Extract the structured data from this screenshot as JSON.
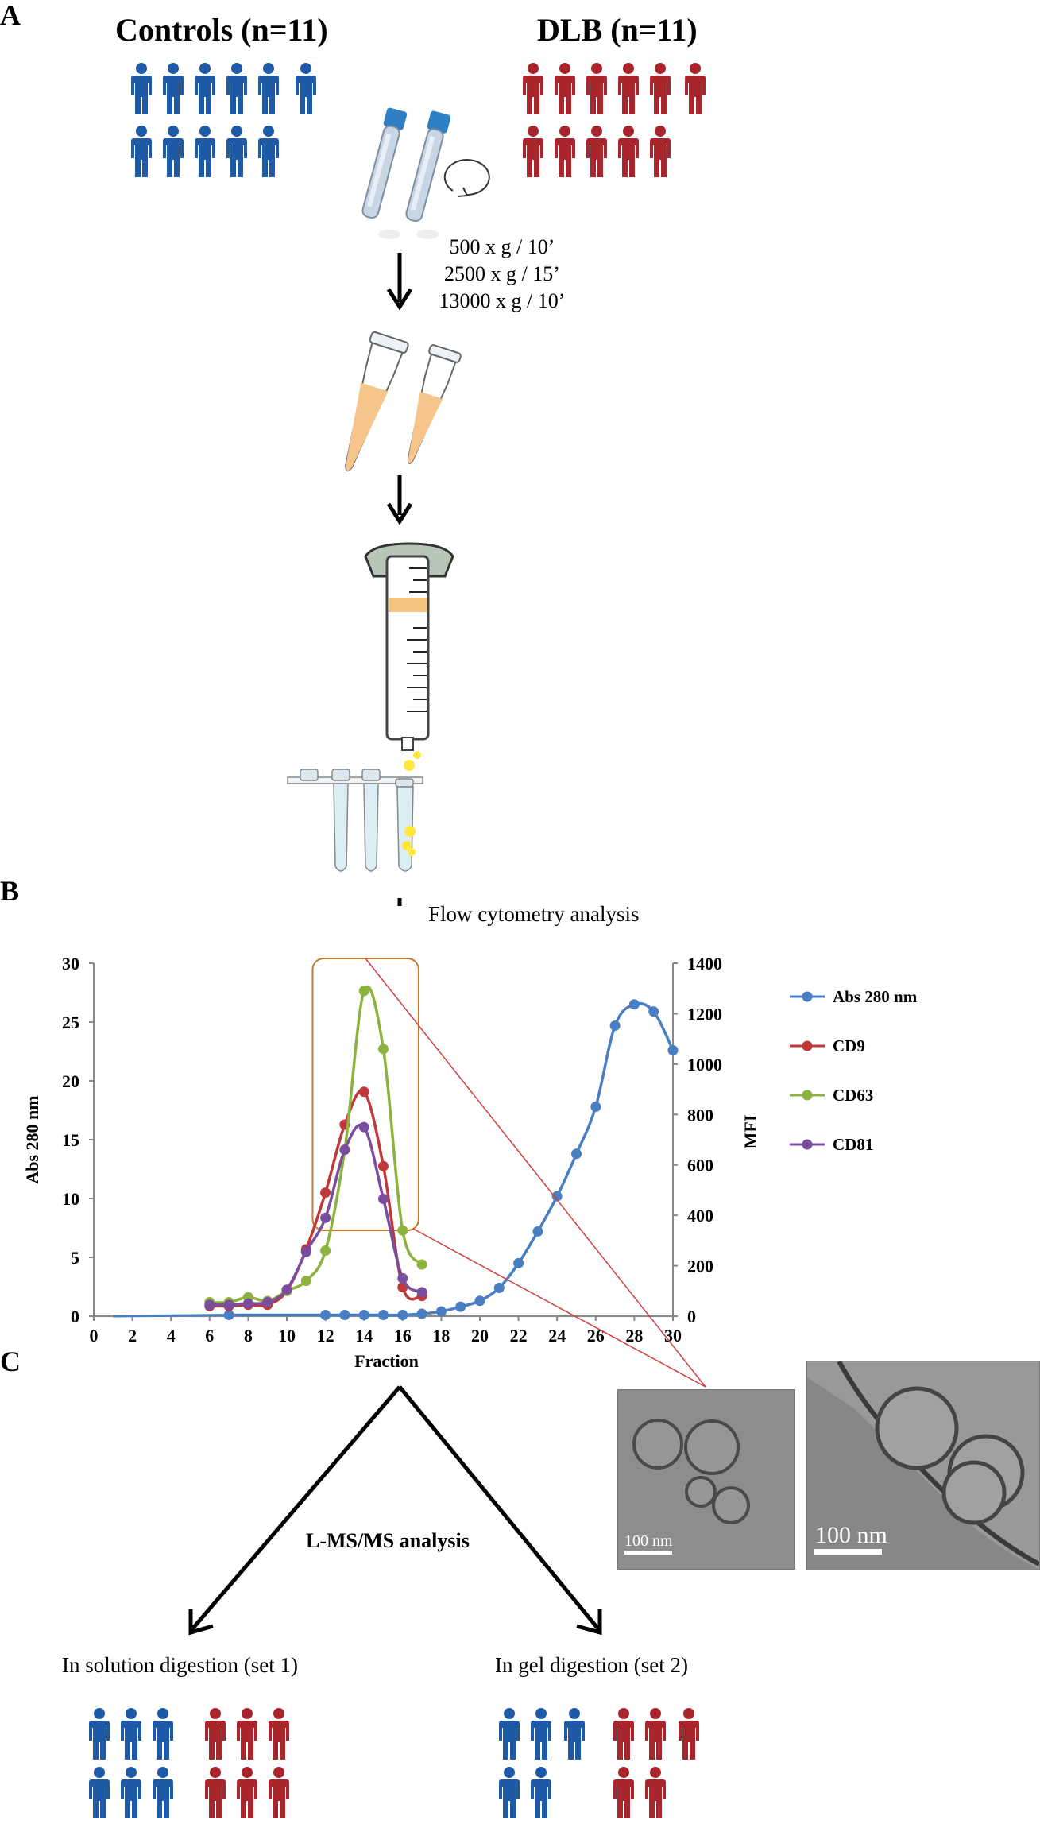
{
  "panels": {
    "a": "A",
    "b": "B",
    "c": "C"
  },
  "groups": {
    "controls": {
      "label": "Controls (n=11)",
      "color": "#1f5aa6",
      "count": 11
    },
    "dlb": {
      "label": "DLB (n=11)",
      "color": "#a8262b",
      "count": 11
    }
  },
  "centrifugation": [
    "500 x g / 10’",
    "2500 x g / 15’",
    "13000 x g / 10’"
  ],
  "flow_label": "Flow cytometry analysis",
  "analysis_label": "L-MS/MS analysis",
  "set1": {
    "label": "In solution digestion (set 1)",
    "controls": 6,
    "dlb": 6
  },
  "set2": {
    "label": "In gel digestion (set 2)",
    "controls": 5,
    "dlb": 5
  },
  "scale_bars": [
    "100 nm",
    "100 nm"
  ],
  "colors": {
    "abs": "#4a7ec3",
    "cd9": "#c0383a",
    "cd63": "#8cb33e",
    "cd81": "#7a4d9e",
    "highlight_box": "#c47a2a",
    "zoom_lines": "#d04040"
  },
  "chart_data": {
    "type": "line",
    "xlabel": "Fraction",
    "ylabel_left": "Abs 280 nm",
    "ylabel_right": "MFI",
    "xlim": [
      0,
      30
    ],
    "ylim_left": [
      0,
      30
    ],
    "ylim_right": [
      0,
      1400
    ],
    "x_ticks": [
      0,
      2,
      4,
      6,
      8,
      10,
      12,
      14,
      16,
      18,
      20,
      22,
      24,
      26,
      28,
      30
    ],
    "y_ticks_left": [
      0,
      5,
      10,
      15,
      20,
      25,
      30
    ],
    "y_ticks_right": [
      0,
      200,
      400,
      600,
      800,
      1000,
      1200,
      1400
    ],
    "legend_position": "right",
    "series": [
      {
        "name": "Abs 280 nm",
        "axis": "left",
        "color": "#4a7ec3",
        "x": [
          7,
          12,
          13,
          14,
          15,
          16,
          17,
          18,
          19,
          20,
          21,
          22,
          23,
          24,
          25,
          26,
          27,
          28,
          29,
          30
        ],
        "y": [
          0.1,
          0.1,
          0.1,
          0.1,
          0.1,
          0.1,
          0.2,
          0.4,
          0.8,
          1.3,
          2.4,
          4.5,
          7.2,
          10.2,
          13.8,
          17.8,
          24.7,
          26.5,
          25.9,
          22.6
        ]
      },
      {
        "name": "CD9",
        "axis": "right",
        "color": "#c0383a",
        "x": [
          6,
          7,
          8,
          9,
          10,
          11,
          12,
          13,
          14,
          15,
          16,
          17
        ],
        "y": [
          40,
          40,
          45,
          45,
          100,
          265,
          490,
          760,
          890,
          595,
          115,
          80
        ]
      },
      {
        "name": "CD63",
        "axis": "right",
        "color": "#8cb33e",
        "x": [
          6,
          7,
          8,
          9,
          10,
          11,
          12,
          13,
          14,
          15,
          16,
          17
        ],
        "y": [
          55,
          55,
          75,
          60,
          100,
          140,
          260,
          660,
          1290,
          1060,
          340,
          205
        ]
      },
      {
        "name": "CD81",
        "axis": "right",
        "color": "#7a4d9e",
        "x": [
          6,
          7,
          8,
          9,
          10,
          11,
          12,
          13,
          14,
          15,
          16,
          17
        ],
        "y": [
          45,
          45,
          50,
          55,
          105,
          255,
          390,
          660,
          750,
          465,
          150,
          95
        ]
      }
    ],
    "highlight_range_x": [
      11.5,
      16.5
    ]
  }
}
